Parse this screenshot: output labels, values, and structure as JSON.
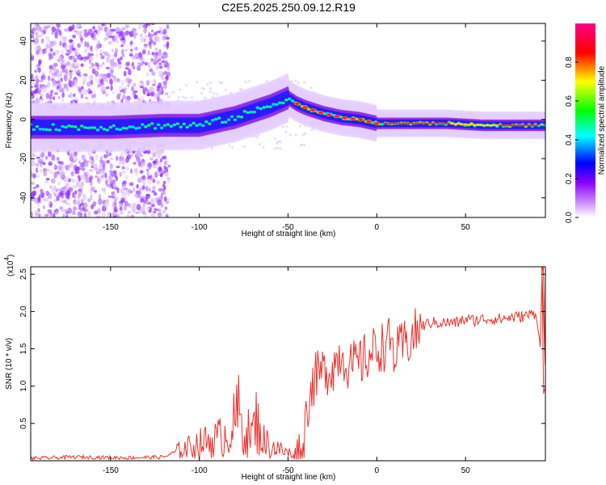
{
  "title": "C2E5.2025.250.09.12.R19",
  "chart_data": [
    {
      "type": "heatmap",
      "title": "C2E5.2025.250.09.12.R19",
      "xlabel": "Height of straight line (km)",
      "ylabel": "Frequency (Hz)",
      "xlim": [
        -195,
        95
      ],
      "ylim": [
        -50,
        49
      ],
      "xticks": [
        -150,
        -100,
        -50,
        0,
        50
      ],
      "xtick_labels": [
        "-150",
        "-100",
        "-50",
        "0",
        "50"
      ],
      "yticks": [
        -40,
        -20,
        0,
        20,
        40
      ],
      "ytick_labels": [
        "-40",
        "-20",
        "0",
        "20",
        "40"
      ],
      "ridge": {
        "x": [
          -195,
          -150,
          -120,
          -100,
          -80,
          -60,
          -50,
          -45,
          -40,
          -30,
          -20,
          -10,
          0,
          10,
          20,
          40,
          60,
          80,
          95
        ],
        "y": [
          -4,
          -4,
          -3,
          -3,
          1,
          7,
          11,
          8,
          6,
          3,
          1,
          0,
          -2,
          -2,
          -2,
          -2,
          -3,
          -3,
          -3
        ]
      },
      "colorbar": {
        "label": "Normalized spectral amplitude",
        "range": [
          0,
          1
        ],
        "ticks": [
          0.0,
          0.2,
          0.4,
          0.6,
          0.8
        ],
        "tick_labels": [
          "0.0",
          "0.2",
          "0.4",
          "0.6",
          "0.8"
        ],
        "colors": [
          "#ffffff",
          "#8800ff",
          "#0000ff",
          "#00ffff",
          "#00ff00",
          "#ffff00",
          "#ff0000",
          "#ff0088"
        ]
      }
    },
    {
      "type": "line",
      "xlabel": "Height of straight line (km)",
      "ylabel": "SNR (10 * v/v)",
      "exponent_label": "(x10",
      "exponent_value": "4",
      "exponent_close": ")",
      "xlim": [
        -195,
        95
      ],
      "ylim": [
        0,
        26000
      ],
      "xticks": [
        -150,
        -100,
        -50,
        0,
        50
      ],
      "xtick_labels": [
        "-150",
        "-100",
        "-50",
        "0",
        "50"
      ],
      "yticks": [
        5000,
        10000,
        15000,
        20000,
        25000
      ],
      "ytick_labels": [
        "0.5",
        "1.0",
        "1.5",
        "2.0",
        "2.5"
      ],
      "color": "#e8342e",
      "series": [
        {
          "name": "SNR",
          "x": [
            -195,
            -170,
            -140,
            -120,
            -115,
            -110,
            -100,
            -90,
            -85,
            -80,
            -78,
            -75,
            -70,
            -68,
            -65,
            -60,
            -55,
            -50,
            -45,
            -42,
            -40,
            -38,
            -35,
            -30,
            -25,
            -20,
            -15,
            -10,
            -5,
            0,
            5,
            8,
            10,
            15,
            20,
            25,
            30,
            35,
            40,
            45,
            50,
            55,
            60,
            65,
            70,
            75,
            80,
            85,
            90,
            92,
            93,
            94,
            95
          ],
          "y": [
            300,
            500,
            400,
            500,
            1000,
            1500,
            2300,
            3000,
            3500,
            5000,
            6500,
            4000,
            3500,
            5500,
            3000,
            2000,
            1500,
            1000,
            1000,
            2000,
            5500,
            9000,
            11000,
            12000,
            12500,
            14500,
            12500,
            13000,
            14000,
            15000,
            15500,
            16000,
            14000,
            15500,
            16500,
            18000,
            18500,
            18500,
            18500,
            18500,
            19000,
            18800,
            19000,
            19000,
            19000,
            19200,
            19300,
            19500,
            19800,
            15000,
            25000,
            26000,
            10000
          ]
        }
      ]
    }
  ]
}
